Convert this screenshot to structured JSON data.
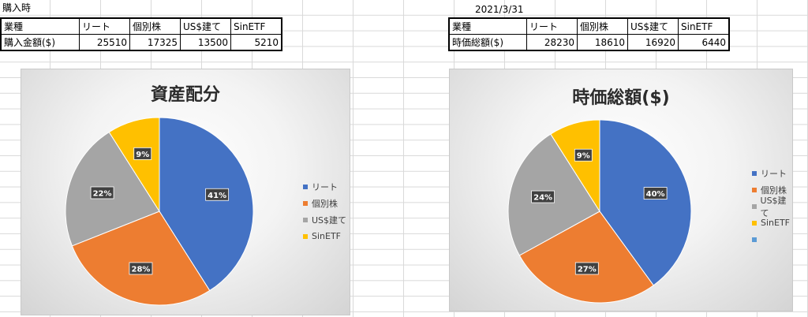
{
  "left": {
    "header_label": "購入時",
    "table": {
      "headers": [
        "業種",
        "リート",
        "個別株",
        "US$建て",
        "SinETF"
      ],
      "row_label": "購入金額($)",
      "values": [
        "25510",
        "17325",
        "13500",
        "5210"
      ]
    },
    "chart_data": {
      "type": "pie",
      "title": "資産配分",
      "categories": [
        "リート",
        "個別株",
        "US$建て",
        "SinETF"
      ],
      "values": [
        41,
        28,
        22,
        9
      ],
      "data_labels": [
        "41%",
        "28%",
        "22%",
        "9%"
      ],
      "legend": [
        "リート",
        "個別株",
        "US$建て",
        "SinETF"
      ],
      "legend_position": "right"
    }
  },
  "right": {
    "header_label": "2021/3/31",
    "table": {
      "headers": [
        "業種",
        "リート",
        "個別株",
        "US$建て",
        "SinETF"
      ],
      "row_label": "時価総額($)",
      "values": [
        "28230",
        "18610",
        "16920",
        "6440"
      ]
    },
    "chart_data": {
      "type": "pie",
      "title": "時価総額($)",
      "categories": [
        "リート",
        "個別株",
        "US$建て",
        "SinETF"
      ],
      "values": [
        40,
        27,
        24,
        9
      ],
      "data_labels": [
        "40%",
        "27%",
        "24%",
        "9%"
      ],
      "legend": [
        "リート",
        "個別株",
        "US$建て",
        "SinETF",
        ""
      ],
      "legend_position": "right"
    }
  },
  "colors": {
    "series": [
      "#4472C4",
      "#ED7D31",
      "#A5A5A5",
      "#FFC000",
      "#5B9BD5"
    ],
    "label_bg": "#404040"
  }
}
